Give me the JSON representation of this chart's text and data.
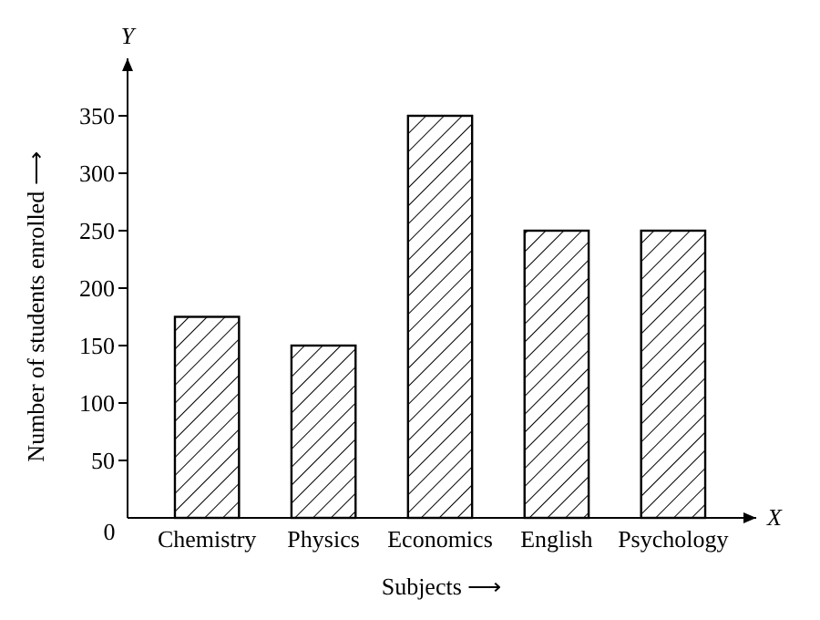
{
  "chart_data": {
    "type": "bar",
    "xlabel": "Subjects ⟶",
    "ylabel": "Number of students enrolled ⟶",
    "categories": [
      "Chemistry",
      "Physics",
      "Economics",
      "English",
      "Psychology"
    ],
    "values": [
      175,
      150,
      350,
      250,
      250
    ],
    "color": "#000000",
    "ylim": [
      0,
      400
    ],
    "yticks": [
      0,
      50,
      100,
      150,
      200,
      250,
      300,
      350
    ],
    "annotations": [
      "Y",
      "X"
    ],
    "grid": false
  }
}
